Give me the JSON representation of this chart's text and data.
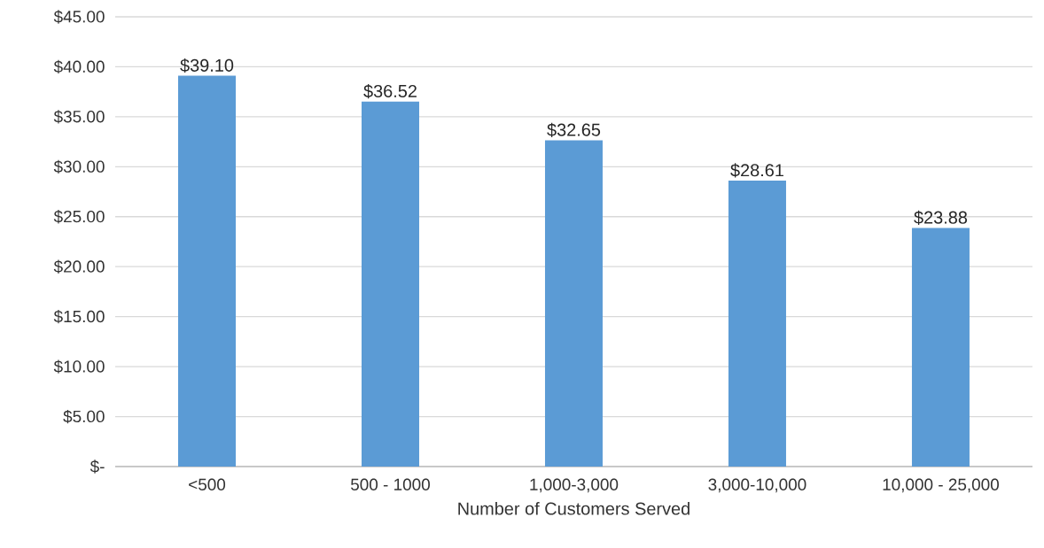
{
  "chart_data": {
    "type": "bar",
    "xlabel": "Number of Customers Served",
    "categories": [
      "<500",
      "500 - 1000",
      "1,000-3,000",
      "3,000-10,000",
      "10,000 - 25,000"
    ],
    "values": [
      39.1,
      36.52,
      32.65,
      28.61,
      23.88
    ],
    "value_labels": [
      "$39.10",
      "$36.52",
      "$32.65",
      "$28.61",
      "$23.88"
    ],
    "color": "#5b9bd5",
    "ylim": [
      0,
      45
    ],
    "yticks": [
      {
        "value": 0,
        "label": "$-"
      },
      {
        "value": 5,
        "label": "$5.00"
      },
      {
        "value": 10,
        "label": "$10.00"
      },
      {
        "value": 15,
        "label": "$15.00"
      },
      {
        "value": 20,
        "label": "$20.00"
      },
      {
        "value": 25,
        "label": "$25.00"
      },
      {
        "value": 30,
        "label": "$30.00"
      },
      {
        "value": 35,
        "label": "$35.00"
      },
      {
        "value": 40,
        "label": "$40.00"
      },
      {
        "value": 45,
        "label": "$45.00"
      }
    ],
    "grid": "y"
  }
}
